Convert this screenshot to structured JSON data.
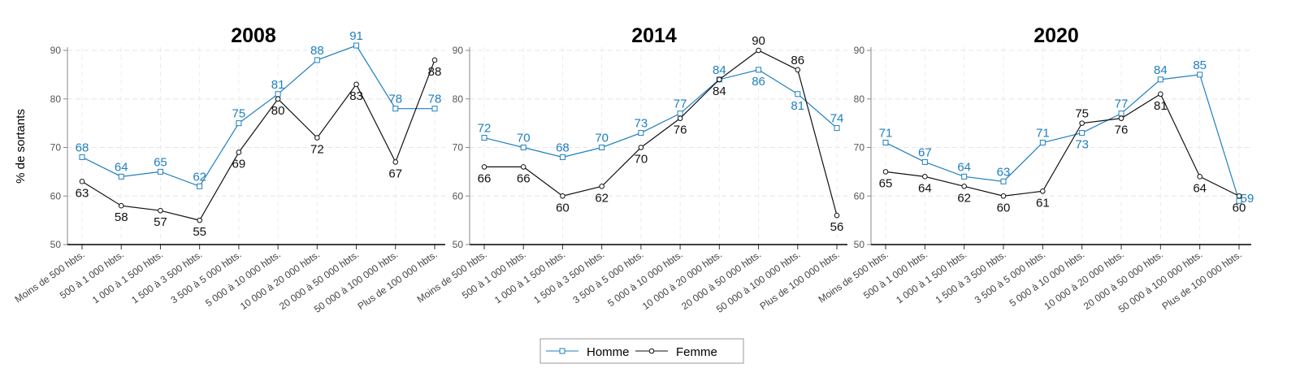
{
  "chart_data": {
    "type": "line",
    "ylabel": "% de sortants",
    "ylim": [
      50,
      92
    ],
    "yticks": [
      50,
      60,
      70,
      80,
      90
    ],
    "grid": true,
    "legend_position": "bottom-center",
    "categories": [
      "Moins de 500 hbts.",
      "500 à 1 000 hbts.",
      "1 000 à 1 500 hbts.",
      "1 500 à 3 500 hbts.",
      "3 500 à 5 000 hbts.",
      "5 000 à 10 000 hbts.",
      "10 000 à 20 000 hbts.",
      "20 000 à 50 000 hbts.",
      "50 000 à 100 000 hbts.",
      "Plus de 100 000 hbts."
    ],
    "series_names": [
      "Homme",
      "Femme"
    ],
    "colors": {
      "Homme": "#1f7fbf",
      "Femme": "#111111"
    },
    "panels": [
      {
        "title": "2008",
        "series": [
          {
            "name": "Homme",
            "values": [
              68,
              64,
              65,
              62,
              75,
              81,
              88,
              91,
              78,
              78
            ]
          },
          {
            "name": "Femme",
            "values": [
              63,
              58,
              57,
              55,
              69,
              80,
              72,
              83,
              67,
              88
            ]
          }
        ]
      },
      {
        "title": "2014",
        "series": [
          {
            "name": "Homme",
            "values": [
              72,
              70,
              68,
              70,
              73,
              77,
              84,
              86,
              81,
              74
            ]
          },
          {
            "name": "Femme",
            "values": [
              66,
              66,
              60,
              62,
              70,
              76,
              84,
              90,
              86,
              56
            ]
          }
        ]
      },
      {
        "title": "2020",
        "series": [
          {
            "name": "Homme",
            "values": [
              71,
              67,
              64,
              63,
              71,
              73,
              77,
              84,
              85,
              59
            ]
          },
          {
            "name": "Femme",
            "values": [
              65,
              64,
              62,
              60,
              61,
              75,
              76,
              81,
              64,
              60
            ]
          }
        ]
      }
    ]
  }
}
